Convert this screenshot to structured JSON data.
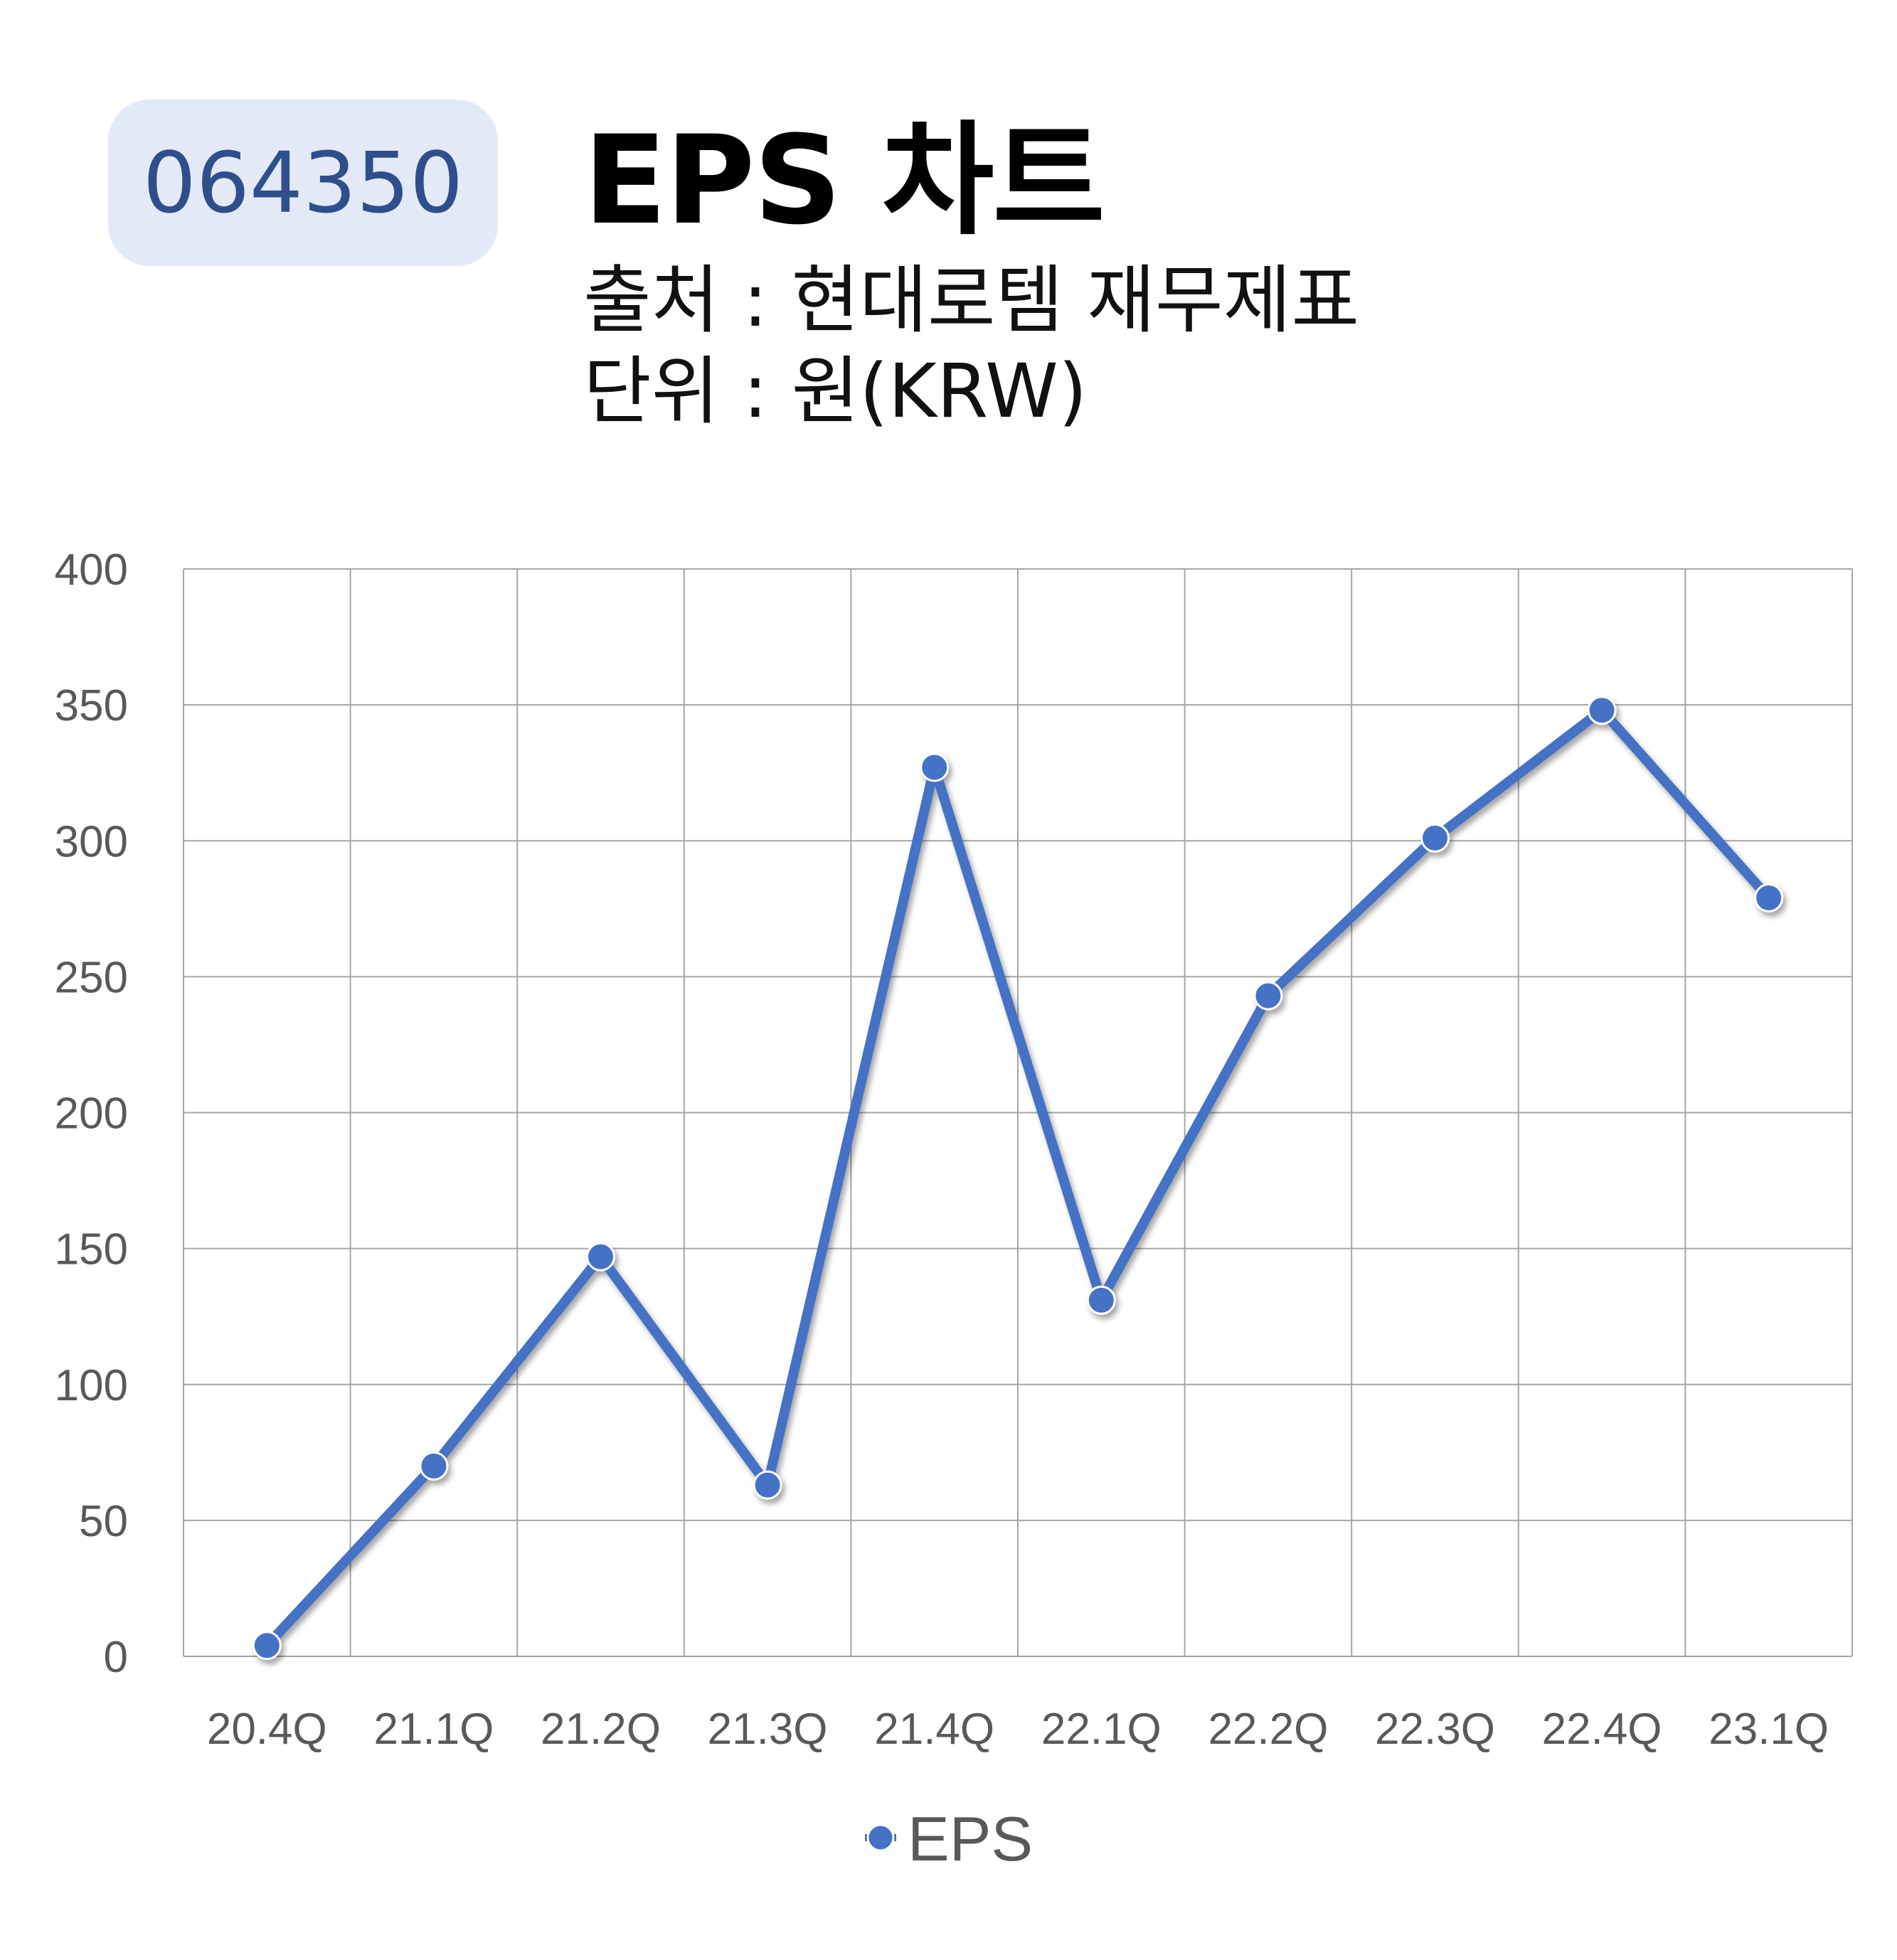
{
  "badge": {
    "code": "064350"
  },
  "header": {
    "title": "EPS 차트",
    "source": "출처 : 현대로템 재무제표",
    "unit": "단위 : 원(KRW)"
  },
  "colors": {
    "series": "#4472c4",
    "grid": "#a6a6a6",
    "badge_bg": "#e3e9f6",
    "badge_text": "#2f4e8c"
  },
  "chart_data": {
    "type": "line",
    "categories": [
      "20.4Q",
      "21.1Q",
      "21.2Q",
      "21.3Q",
      "21.4Q",
      "22.1Q",
      "22.2Q",
      "22.3Q",
      "22.4Q",
      "23.1Q"
    ],
    "series": [
      {
        "name": "EPS",
        "values": [
          4,
          70,
          147,
          63,
          327,
          131,
          243,
          301,
          348,
          279
        ]
      }
    ],
    "ylim": [
      0,
      400
    ],
    "yticks": [
      0,
      50,
      100,
      150,
      200,
      250,
      300,
      350,
      400
    ],
    "grid": true,
    "legend": "bottom",
    "markers": true
  }
}
